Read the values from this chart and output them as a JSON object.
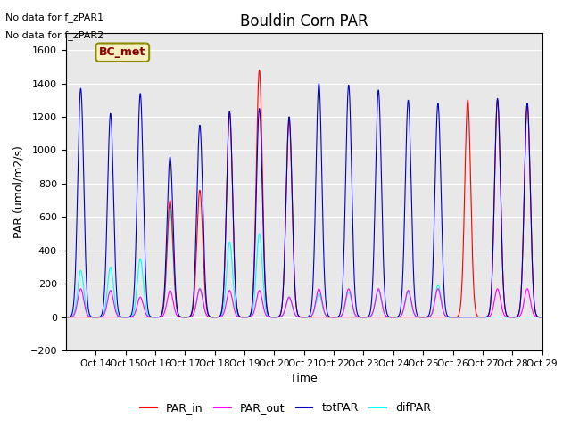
{
  "title": "Bouldin Corn PAR",
  "ylabel": "PAR (umol/m2/s)",
  "xlabel": "Time",
  "no_data_text": [
    "No data for f_zPAR1",
    "No data for f_zPAR2"
  ],
  "legend_label_text": "BC_met",
  "ylim": [
    -200,
    1700
  ],
  "yticks": [
    -200,
    0,
    200,
    400,
    600,
    800,
    1000,
    1200,
    1400,
    1600
  ],
  "xtick_labels": [
    "Oct 14",
    "Oct 15",
    "Oct 16",
    "Oct 17",
    "Oct 18",
    "Oct 19",
    "Oct 20",
    "Oct 21",
    "Oct 22",
    "Oct 23",
    "Oct 24",
    "Oct 25",
    "Oct 26",
    "Oct 27",
    "Oct 28",
    "Oct 29"
  ],
  "colors": {
    "PAR_in": "#ff0000",
    "PAR_out": "#ff00ff",
    "totPAR": "#0000cc",
    "difPAR": "#00ffff"
  },
  "background_color": "#e8e8e8",
  "legend_box_color": "#f5f0c0",
  "legend_box_edge_color": "#8B8B00"
}
